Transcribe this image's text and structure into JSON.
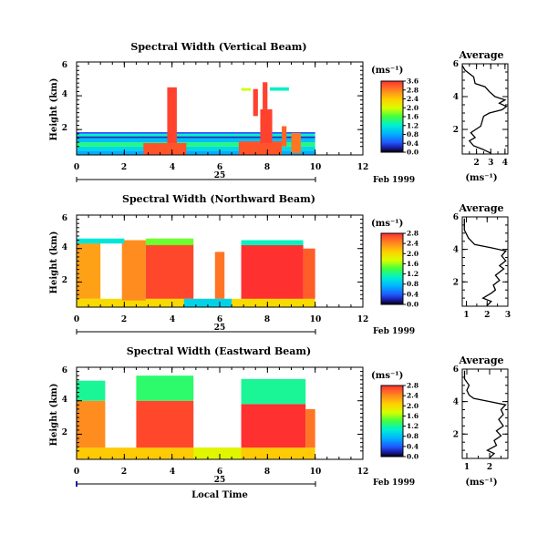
{
  "chart_data": [
    {
      "type": "heatmap",
      "title": "Spectral Width (Vertical Beam)",
      "ylabel": "Height (km)",
      "xlim": [
        0,
        12
      ],
      "ylim": [
        0.5,
        6
      ],
      "xticks": [
        "0",
        "2",
        "4",
        "6",
        "8",
        "10",
        "12"
      ],
      "yticks": [
        "2",
        "4",
        "6"
      ],
      "date_day": "25",
      "date_month_year": "Feb 1999",
      "colorbar": {
        "unit": "(ms⁻¹)",
        "ticks": [
          "0.0",
          "0.4",
          "0.8",
          "1.2",
          "1.6",
          "2.0",
          "2.4",
          "2.8",
          "3.6"
        ]
      },
      "blocks": [
        {
          "x": [
            0.0,
            10.0
          ],
          "y": [
            0.5,
            0.75
          ],
          "v": 0.9
        },
        {
          "x": [
            0.0,
            10.0
          ],
          "y": [
            0.75,
            1.0
          ],
          "v": 1.2
        },
        {
          "x": [
            0.0,
            10.0
          ],
          "y": [
            1.0,
            1.25
          ],
          "v": 1.6
        },
        {
          "x": [
            0.0,
            10.0
          ],
          "y": [
            1.25,
            1.5
          ],
          "v": 1.0
        },
        {
          "x": [
            0.0,
            10.0
          ],
          "y": [
            1.5,
            1.6
          ],
          "v": 0.3
        },
        {
          "x": [
            0.0,
            10.0
          ],
          "y": [
            1.6,
            1.75
          ],
          "v": 1.4
        },
        {
          "x": [
            0.0,
            10.0
          ],
          "y": [
            1.75,
            1.85
          ],
          "v": 0.5
        },
        {
          "x": [
            2.8,
            4.6
          ],
          "y": [
            0.5,
            1.2
          ],
          "v": 3.4
        },
        {
          "x": [
            6.8,
            8.6
          ],
          "y": [
            0.5,
            1.3
          ],
          "v": 3.4
        },
        {
          "x": [
            3.8,
            4.2
          ],
          "y": [
            1.2,
            4.5
          ],
          "v": 3.5
        },
        {
          "x": [
            7.7,
            8.2
          ],
          "y": [
            1.2,
            3.2
          ],
          "v": 3.5
        },
        {
          "x": [
            7.8,
            8.0
          ],
          "y": [
            3.2,
            4.8
          ],
          "v": 3.5
        },
        {
          "x": [
            7.4,
            7.6
          ],
          "y": [
            2.8,
            4.4
          ],
          "v": 3.5
        },
        {
          "x": [
            8.6,
            8.8
          ],
          "y": [
            1.0,
            2.2
          ],
          "v": 3.3
        },
        {
          "x": [
            9.0,
            9.4
          ],
          "y": [
            0.6,
            1.8
          ],
          "v": 3.2
        },
        {
          "x": [
            8.1,
            8.9
          ],
          "y": [
            4.3,
            4.5
          ],
          "v": 1.4
        },
        {
          "x": [
            6.9,
            7.3
          ],
          "y": [
            4.3,
            4.45
          ],
          "v": 2.2
        }
      ],
      "average": {
        "title": "Average",
        "xlabel": "(ms⁻¹)",
        "xlim": [
          1,
          4.2
        ],
        "ylim": [
          0.5,
          6
        ],
        "xticks": [
          {
            "v": 2,
            "t": "2"
          },
          {
            "v": 3,
            "t": "3"
          },
          {
            "v": 4,
            "t": "4"
          }
        ],
        "yticks": [
          "2",
          "4",
          "6"
        ],
        "profile": [
          [
            3.0,
            0.55
          ],
          [
            2.4,
            0.8
          ],
          [
            1.8,
            1.0
          ],
          [
            1.5,
            1.3
          ],
          [
            1.9,
            1.5
          ],
          [
            1.6,
            1.8
          ],
          [
            2.3,
            2.2
          ],
          [
            2.5,
            2.8
          ],
          [
            2.9,
            3.0
          ],
          [
            3.8,
            3.2
          ],
          [
            4.1,
            3.4
          ],
          [
            3.6,
            3.6
          ],
          [
            4.0,
            3.8
          ],
          [
            3.3,
            4.0
          ],
          [
            2.9,
            4.3
          ],
          [
            2.6,
            4.6
          ],
          [
            1.9,
            4.8
          ],
          [
            1.8,
            5.2
          ],
          [
            1.2,
            5.6
          ],
          [
            1.0,
            5.9
          ]
        ]
      }
    },
    {
      "type": "heatmap",
      "title": "Spectral Width (Northward Beam)",
      "ylabel": "Height (km)",
      "xlim": [
        0,
        12
      ],
      "ylim": [
        0.5,
        6
      ],
      "xticks": [
        "0",
        "2",
        "4",
        "6",
        "8",
        "10",
        "12"
      ],
      "yticks": [
        "2",
        "4",
        "6"
      ],
      "date_day": "25",
      "date_month_year": "Feb 1999",
      "colorbar": {
        "unit": "(ms⁻¹)",
        "ticks": [
          "0.0",
          "0.4",
          "0.8",
          "1.2",
          "1.6",
          "2.0",
          "2.4",
          "2.8"
        ]
      },
      "blocks": [
        {
          "x": [
            0.0,
            10.0
          ],
          "y": [
            0.5,
            1.0
          ],
          "v": 2.0
        },
        {
          "x": [
            0.0,
            1.0
          ],
          "y": [
            1.0,
            4.5
          ],
          "v": 2.3
        },
        {
          "x": [
            1.9,
            2.9
          ],
          "y": [
            0.9,
            4.5
          ],
          "v": 2.4
        },
        {
          "x": [
            2.9,
            4.9
          ],
          "y": [
            1.0,
            4.3
          ],
          "v": 2.7
        },
        {
          "x": [
            6.9,
            9.5
          ],
          "y": [
            1.0,
            4.3
          ],
          "v": 2.8
        },
        {
          "x": [
            5.8,
            6.2
          ],
          "y": [
            1.0,
            3.8
          ],
          "v": 2.5
        },
        {
          "x": [
            4.5,
            6.5
          ],
          "y": [
            0.5,
            1.0
          ],
          "v": 0.9
        },
        {
          "x": [
            0.0,
            2.0
          ],
          "y": [
            4.3,
            4.6
          ],
          "v": 1.0
        },
        {
          "x": [
            2.9,
            4.9
          ],
          "y": [
            4.2,
            4.6
          ],
          "v": 1.5
        },
        {
          "x": [
            6.9,
            9.5
          ],
          "y": [
            4.2,
            4.5
          ],
          "v": 1.1
        },
        {
          "x": [
            9.5,
            10.0
          ],
          "y": [
            1.0,
            4.0
          ],
          "v": 2.6
        }
      ],
      "average": {
        "title": "Average",
        "xlabel": "",
        "xlim": [
          0.8,
          3.0
        ],
        "ylim": [
          0.5,
          6
        ],
        "xticks": [
          {
            "v": 1,
            "t": "1"
          },
          {
            "v": 2,
            "t": "2"
          },
          {
            "v": 3,
            "t": "3"
          }
        ],
        "yticks": [
          "2",
          "4",
          "6"
        ],
        "profile": [
          [
            2.0,
            0.55
          ],
          [
            2.2,
            0.8
          ],
          [
            1.8,
            1.0
          ],
          [
            2.2,
            1.3
          ],
          [
            2.4,
            1.5
          ],
          [
            2.3,
            1.8
          ],
          [
            2.6,
            2.1
          ],
          [
            2.4,
            2.4
          ],
          [
            2.8,
            2.8
          ],
          [
            2.6,
            3.0
          ],
          [
            2.9,
            3.3
          ],
          [
            2.7,
            3.6
          ],
          [
            2.9,
            3.9
          ],
          [
            2.2,
            4.1
          ],
          [
            1.4,
            4.3
          ],
          [
            1.1,
            4.7
          ],
          [
            0.9,
            5.2
          ],
          [
            0.9,
            5.9
          ]
        ]
      }
    },
    {
      "type": "heatmap",
      "title": "Spectral Width (Eastward Beam)",
      "ylabel": "Height (km)",
      "xlabel": "Local Time",
      "xlim": [
        0,
        12
      ],
      "ylim": [
        0.5,
        6
      ],
      "xticks": [
        "0",
        "2",
        "4",
        "6",
        "8",
        "10",
        "12"
      ],
      "yticks": [
        "2",
        "4",
        "6"
      ],
      "date_day": "25",
      "date_month_year": "Feb 1999",
      "colorbar": {
        "unit": "(ms⁻¹)",
        "ticks": [
          "0.0",
          "0.4",
          "0.8",
          "1.2",
          "1.6",
          "2.0",
          "2.4",
          "2.8"
        ]
      },
      "blocks": [
        {
          "x": [
            0.0,
            10.0
          ],
          "y": [
            0.5,
            1.2
          ],
          "v": 2.1
        },
        {
          "x": [
            0.0,
            1.2
          ],
          "y": [
            1.2,
            4.0
          ],
          "v": 2.4
        },
        {
          "x": [
            2.5,
            4.9
          ],
          "y": [
            1.2,
            4.0
          ],
          "v": 2.7
        },
        {
          "x": [
            6.9,
            9.6
          ],
          "y": [
            1.2,
            3.8
          ],
          "v": 2.8
        },
        {
          "x": [
            0.0,
            1.2
          ],
          "y": [
            4.0,
            5.2
          ],
          "v": 1.2
        },
        {
          "x": [
            2.5,
            4.9
          ],
          "y": [
            4.0,
            5.5
          ],
          "v": 1.3
        },
        {
          "x": [
            6.9,
            9.6
          ],
          "y": [
            3.8,
            5.3
          ],
          "v": 1.2
        },
        {
          "x": [
            4.9,
            6.9
          ],
          "y": [
            0.5,
            1.2
          ],
          "v": 1.8
        },
        {
          "x": [
            9.6,
            10.0
          ],
          "y": [
            1.2,
            3.5
          ],
          "v": 2.5
        }
      ],
      "average": {
        "title": "Average",
        "xlabel": "(ms⁻¹)",
        "xlim": [
          0.8,
          2.8
        ],
        "ylim": [
          0.5,
          6
        ],
        "xticks": [
          {
            "v": 1,
            "t": "1"
          },
          {
            "v": 2,
            "t": "2"
          }
        ],
        "yticks": [
          "2",
          "4",
          "6"
        ],
        "profile": [
          [
            2.0,
            0.55
          ],
          [
            2.2,
            0.8
          ],
          [
            1.9,
            1.0
          ],
          [
            2.3,
            1.3
          ],
          [
            2.2,
            1.6
          ],
          [
            2.5,
            1.9
          ],
          [
            2.3,
            2.2
          ],
          [
            2.6,
            2.5
          ],
          [
            2.4,
            2.9
          ],
          [
            2.6,
            3.2
          ],
          [
            2.5,
            3.5
          ],
          [
            2.7,
            3.8
          ],
          [
            2.0,
            4.0
          ],
          [
            1.3,
            4.2
          ],
          [
            1.1,
            4.4
          ],
          [
            1.0,
            4.7
          ],
          [
            1.1,
            5.0
          ],
          [
            0.9,
            5.4
          ],
          [
            0.9,
            5.9
          ]
        ]
      }
    }
  ]
}
